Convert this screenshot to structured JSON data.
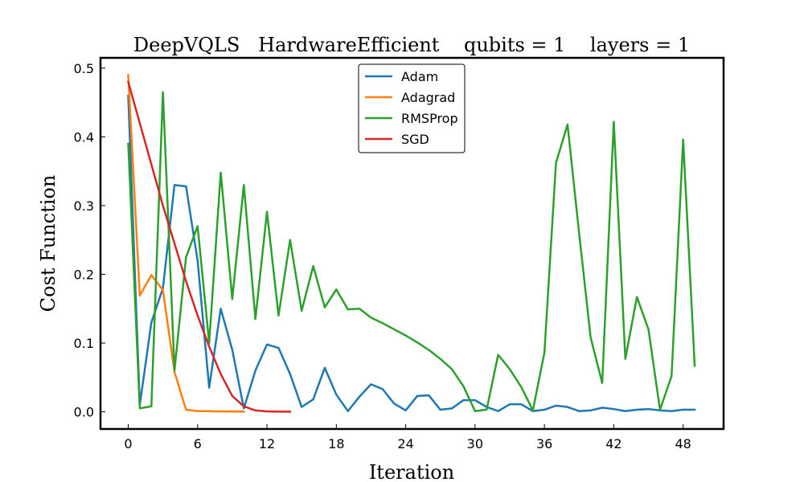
{
  "chart_data": {
    "type": "line",
    "title": "DeepVQLS   HardwareEfficient    qubits = 1    layers = 1",
    "xlabel": "Iteration",
    "ylabel": "Cost Function",
    "xlim": [
      -2.4,
      51.5
    ],
    "ylim": [
      -0.025,
      0.515
    ],
    "xticks": [
      0,
      6,
      12,
      18,
      24,
      30,
      36,
      42,
      48
    ],
    "yticks": [
      0.0,
      0.1,
      0.2,
      0.3,
      0.4,
      0.5
    ],
    "ytick_labels": [
      "0.0",
      "0.1",
      "0.2",
      "0.3",
      "0.4",
      "0.5"
    ],
    "grid": false,
    "legend_position": "top-center",
    "series": [
      {
        "name": "Adam",
        "color": "#1f77b4",
        "x": [
          0,
          1,
          2,
          3,
          4,
          5,
          6,
          7,
          8,
          9,
          10,
          11,
          12,
          13,
          14,
          15,
          16,
          17,
          18,
          19,
          20,
          21,
          22,
          23,
          24,
          25,
          26,
          27,
          28,
          29,
          30,
          31,
          32,
          33,
          34,
          35,
          36,
          37,
          38,
          39,
          40,
          41,
          42,
          43,
          44,
          45,
          46,
          47,
          48,
          49
        ],
        "values": [
          0.46,
          0.01,
          0.13,
          0.18,
          0.33,
          0.328,
          0.22,
          0.035,
          0.15,
          0.09,
          0.005,
          0.06,
          0.098,
          0.093,
          0.055,
          0.007,
          0.018,
          0.064,
          0.025,
          0.001,
          0.022,
          0.04,
          0.033,
          0.012,
          0.002,
          0.023,
          0.024,
          0.003,
          0.005,
          0.017,
          0.017,
          0.007,
          0.001,
          0.011,
          0.011,
          0.001,
          0.003,
          0.009,
          0.007,
          0.001,
          0.002,
          0.006,
          0.004,
          0.001,
          0.003,
          0.004,
          0.002,
          0.001,
          0.003,
          0.003
        ]
      },
      {
        "name": "Adagrad",
        "color": "#ff7f0e",
        "x": [
          0,
          1,
          2,
          3,
          4,
          5,
          6,
          7,
          8,
          9,
          10
        ],
        "values": [
          0.49,
          0.169,
          0.199,
          0.177,
          0.058,
          0.003,
          0.001,
          0.0008,
          0.0005,
          0.0004,
          0.0003
        ]
      },
      {
        "name": "RMSProp",
        "color": "#2ca02c",
        "x": [
          0,
          1,
          2,
          3,
          4,
          5,
          6,
          7,
          8,
          9,
          10,
          11,
          12,
          13,
          14,
          15,
          16,
          17,
          18,
          19,
          20,
          21,
          22,
          23,
          24,
          25,
          26,
          27,
          28,
          29,
          30,
          31,
          32,
          33,
          34,
          35,
          36,
          37,
          38,
          39,
          40,
          41,
          42,
          43,
          44,
          45,
          46,
          47,
          48,
          49
        ],
        "values": [
          0.39,
          0.005,
          0.008,
          0.465,
          0.06,
          0.225,
          0.27,
          0.1,
          0.348,
          0.164,
          0.33,
          0.135,
          0.291,
          0.14,
          0.25,
          0.147,
          0.212,
          0.152,
          0.178,
          0.149,
          0.15,
          0.137,
          0.129,
          0.12,
          0.111,
          0.101,
          0.09,
          0.077,
          0.062,
          0.037,
          0.001,
          0.003,
          0.083,
          0.062,
          0.036,
          0.002,
          0.086,
          0.362,
          0.418,
          0.26,
          0.108,
          0.042,
          0.422,
          0.077,
          0.167,
          0.12,
          0.003,
          0.052,
          0.396,
          0.067
        ]
      },
      {
        "name": "SGD",
        "color": "#d62728",
        "x": [
          0,
          1,
          2,
          3,
          4,
          5,
          6,
          7,
          8,
          9,
          10,
          11,
          12,
          13,
          14
        ],
        "values": [
          0.48,
          0.42,
          0.36,
          0.3,
          0.245,
          0.19,
          0.14,
          0.095,
          0.055,
          0.023,
          0.008,
          0.002,
          0.0005,
          0.0003,
          0.0002
        ]
      }
    ]
  }
}
